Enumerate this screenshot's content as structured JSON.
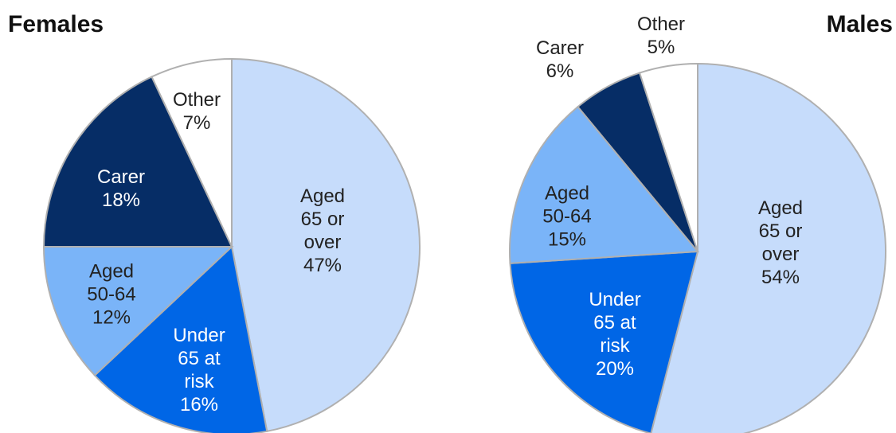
{
  "chart_data": [
    {
      "type": "pie",
      "title": "Females",
      "categories": [
        "Aged 65 or over",
        "Under 65 at risk",
        "Aged 50-64",
        "Carer",
        "Other"
      ],
      "values": [
        47,
        16,
        12,
        18,
        7
      ],
      "value_labels": [
        "47%",
        "16%",
        "12%",
        "18%",
        "7%"
      ],
      "colors": [
        "#c6dcfb",
        "#0066e6",
        "#7ab4f8",
        "#062d66",
        "#ffffff"
      ]
    },
    {
      "type": "pie",
      "title": "Males",
      "categories": [
        "Aged 65 or over",
        "Under 65 at risk",
        "Aged 50-64",
        "Carer",
        "Other"
      ],
      "values": [
        54,
        20,
        15,
        6,
        5
      ],
      "value_labels": [
        "54%",
        "20%",
        "15%",
        "6%",
        "5%"
      ],
      "colors": [
        "#c6dcfb",
        "#0066e6",
        "#7ab4f8",
        "#062d66",
        "#ffffff"
      ]
    }
  ]
}
